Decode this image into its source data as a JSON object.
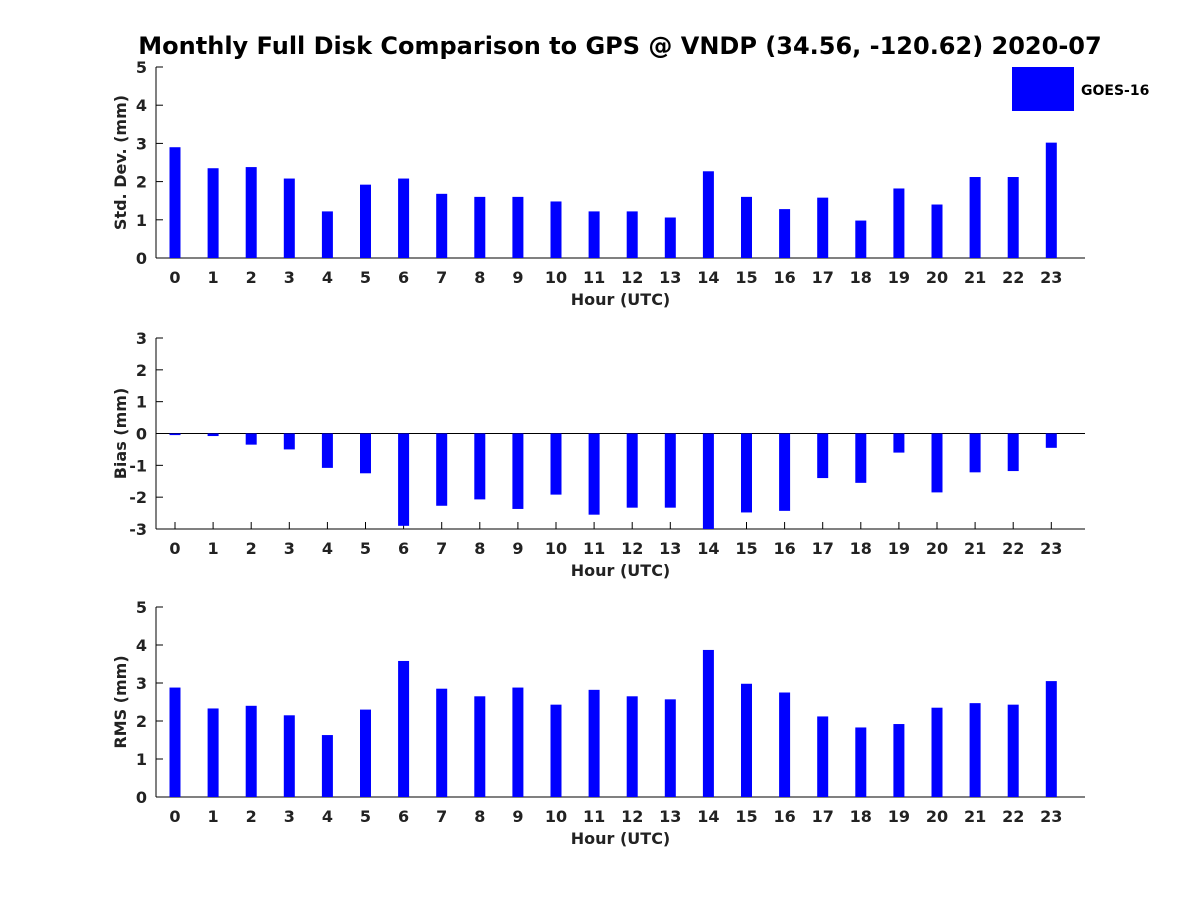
{
  "title": "Monthly Full Disk Comparison to GPS @ VNDP (34.56, -120.62) 2020-07",
  "bar_color": "#0000ff",
  "legend": {
    "label": "GOES-16"
  },
  "chart_data": [
    {
      "type": "bar",
      "ylabel": "Std. Dev. (mm)",
      "xlabel": "Hour (UTC)",
      "ylim": [
        0,
        5
      ],
      "yticks": [
        0,
        1,
        2,
        3,
        4,
        5
      ],
      "categories": [
        "0",
        "1",
        "2",
        "3",
        "4",
        "5",
        "6",
        "7",
        "8",
        "9",
        "10",
        "11",
        "12",
        "13",
        "14",
        "15",
        "16",
        "17",
        "18",
        "19",
        "20",
        "21",
        "22",
        "23"
      ],
      "series": [
        {
          "name": "GOES-16",
          "values": [
            2.9,
            2.35,
            2.38,
            2.08,
            1.22,
            1.92,
            2.08,
            1.68,
            1.6,
            1.6,
            1.48,
            1.22,
            1.22,
            1.06,
            2.27,
            1.6,
            1.28,
            1.58,
            0.98,
            1.82,
            1.4,
            2.12,
            2.12,
            3.02
          ]
        }
      ]
    },
    {
      "type": "bar",
      "ylabel": "Bias (mm)",
      "xlabel": "Hour (UTC)",
      "ylim": [
        -3,
        3
      ],
      "yticks": [
        -3,
        -2,
        -1,
        0,
        1,
        2,
        3
      ],
      "categories": [
        "0",
        "1",
        "2",
        "3",
        "4",
        "5",
        "6",
        "7",
        "8",
        "9",
        "10",
        "11",
        "12",
        "13",
        "14",
        "15",
        "16",
        "17",
        "18",
        "19",
        "20",
        "21",
        "22",
        "23"
      ],
      "series": [
        {
          "name": "GOES-16",
          "values": [
            -0.05,
            -0.08,
            -0.35,
            -0.5,
            -1.08,
            -1.25,
            -2.9,
            -2.27,
            -2.07,
            -2.37,
            -1.92,
            -2.55,
            -2.33,
            -2.33,
            -3.0,
            -2.48,
            -2.43,
            -1.4,
            -1.55,
            -0.6,
            -1.85,
            -1.22,
            -1.18,
            -0.45
          ]
        }
      ]
    },
    {
      "type": "bar",
      "ylabel": "RMS (mm)",
      "xlabel": "Hour (UTC)",
      "ylim": [
        0,
        5
      ],
      "yticks": [
        0,
        1,
        2,
        3,
        4,
        5
      ],
      "categories": [
        "0",
        "1",
        "2",
        "3",
        "4",
        "5",
        "6",
        "7",
        "8",
        "9",
        "10",
        "11",
        "12",
        "13",
        "14",
        "15",
        "16",
        "17",
        "18",
        "19",
        "20",
        "21",
        "22",
        "23"
      ],
      "series": [
        {
          "name": "GOES-16",
          "values": [
            2.88,
            2.33,
            2.4,
            2.15,
            1.63,
            2.3,
            3.58,
            2.85,
            2.65,
            2.88,
            2.43,
            2.82,
            2.65,
            2.57,
            3.87,
            2.98,
            2.75,
            2.12,
            1.83,
            1.92,
            2.35,
            2.47,
            2.43,
            3.05
          ]
        }
      ]
    }
  ]
}
